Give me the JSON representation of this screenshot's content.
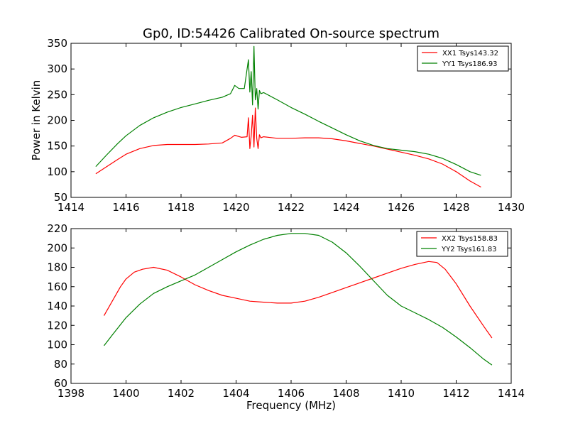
{
  "figure": {
    "title": "Gp0, ID:54426 Calibrated On-source spectrum"
  },
  "chart_data": [
    {
      "type": "line",
      "title": "Gp0, ID:54426 Calibrated On-source spectrum",
      "xlabel": "",
      "ylabel": "Power in Kelvin",
      "xlim": [
        1414,
        1430
      ],
      "ylim": [
        50,
        350
      ],
      "xticks": [
        1414,
        1416,
        1418,
        1420,
        1422,
        1424,
        1426,
        1428,
        1430
      ],
      "yticks": [
        50,
        100,
        150,
        200,
        250,
        300,
        350
      ],
      "legend_position": "top-right",
      "grid": false,
      "series": [
        {
          "name": "XX1 Tsys143.32",
          "color": "#ff0000",
          "x": [
            1414.9,
            1415.3,
            1415.7,
            1416.0,
            1416.5,
            1417.0,
            1417.5,
            1418.0,
            1418.5,
            1419.0,
            1419.5,
            1419.8,
            1419.95,
            1420.2,
            1420.4,
            1420.45,
            1420.5,
            1420.55,
            1420.6,
            1420.65,
            1420.7,
            1420.75,
            1420.8,
            1420.85,
            1420.9,
            1421.0,
            1421.5,
            1422.0,
            1422.5,
            1423.0,
            1423.5,
            1424.0,
            1424.5,
            1425.0,
            1425.5,
            1426.0,
            1426.5,
            1427.0,
            1427.5,
            1428.0,
            1428.5,
            1428.9
          ],
          "y": [
            96,
            110,
            124,
            134,
            145,
            151,
            153,
            153,
            153,
            154,
            156,
            165,
            171,
            167,
            168,
            205,
            145,
            170,
            210,
            148,
            224,
            165,
            145,
            172,
            166,
            168,
            165,
            165,
            166,
            166,
            164,
            160,
            155,
            150,
            144,
            138,
            132,
            125,
            115,
            100,
            82,
            70
          ]
        },
        {
          "name": "YY1 Tsys186.93",
          "color": "#008000",
          "x": [
            1414.9,
            1415.3,
            1415.7,
            1416.0,
            1416.5,
            1417.0,
            1417.5,
            1418.0,
            1418.5,
            1419.0,
            1419.5,
            1419.8,
            1419.95,
            1420.1,
            1420.3,
            1420.45,
            1420.5,
            1420.55,
            1420.6,
            1420.65,
            1420.7,
            1420.75,
            1420.8,
            1420.85,
            1420.9,
            1421.0,
            1421.5,
            1422.0,
            1422.5,
            1423.0,
            1423.5,
            1424.0,
            1424.5,
            1425.0,
            1425.5,
            1426.0,
            1426.5,
            1427.0,
            1427.5,
            1428.0,
            1428.5,
            1428.9
          ],
          "y": [
            110,
            133,
            155,
            170,
            190,
            205,
            216,
            225,
            232,
            239,
            245,
            252,
            268,
            262,
            262,
            318,
            255,
            295,
            230,
            344,
            240,
            262,
            222,
            258,
            252,
            254,
            240,
            225,
            212,
            198,
            185,
            172,
            160,
            151,
            145,
            142,
            139,
            134,
            126,
            114,
            100,
            93
          ]
        }
      ]
    },
    {
      "type": "line",
      "title": "",
      "xlabel": "Frequency (MHz)",
      "ylabel": "",
      "xlim": [
        1398,
        1414
      ],
      "ylim": [
        60,
        220
      ],
      "xticks": [
        1398,
        1400,
        1402,
        1404,
        1406,
        1408,
        1410,
        1412,
        1414
      ],
      "yticks": [
        60,
        80,
        100,
        120,
        140,
        160,
        180,
        200,
        220
      ],
      "legend_position": "top-right",
      "grid": false,
      "series": [
        {
          "name": "XX2 Tsys158.83",
          "color": "#ff0000",
          "x": [
            1399.2,
            1399.5,
            1399.8,
            1400.0,
            1400.3,
            1400.6,
            1401.0,
            1401.5,
            1402.0,
            1402.5,
            1403.0,
            1403.5,
            1404.0,
            1404.5,
            1405.0,
            1405.5,
            1406.0,
            1406.5,
            1407.0,
            1407.5,
            1408.0,
            1408.5,
            1409.0,
            1409.5,
            1410.0,
            1410.5,
            1411.0,
            1411.3,
            1411.6,
            1412.0,
            1412.5,
            1413.0,
            1413.3
          ],
          "y": [
            130,
            145,
            160,
            168,
            175,
            178,
            180,
            177,
            170,
            162,
            156,
            151,
            148,
            145,
            144,
            143,
            143,
            145,
            149,
            154,
            159,
            164,
            169,
            174,
            179,
            183,
            186,
            185,
            178,
            163,
            140,
            119,
            107
          ]
        },
        {
          "name": "YY2 Tsys161.83",
          "color": "#008000",
          "x": [
            1399.2,
            1399.5,
            1400.0,
            1400.5,
            1401.0,
            1401.5,
            1402.0,
            1402.5,
            1403.0,
            1403.5,
            1404.0,
            1404.5,
            1405.0,
            1405.5,
            1406.0,
            1406.5,
            1407.0,
            1407.5,
            1408.0,
            1408.5,
            1409.0,
            1409.5,
            1410.0,
            1410.5,
            1411.0,
            1411.5,
            1412.0,
            1412.5,
            1413.0,
            1413.3
          ],
          "y": [
            99,
            110,
            128,
            142,
            153,
            160,
            166,
            172,
            180,
            188,
            196,
            203,
            209,
            213,
            215,
            215,
            213,
            206,
            195,
            181,
            166,
            151,
            140,
            133,
            126,
            118,
            108,
            97,
            85,
            79
          ]
        }
      ]
    }
  ]
}
